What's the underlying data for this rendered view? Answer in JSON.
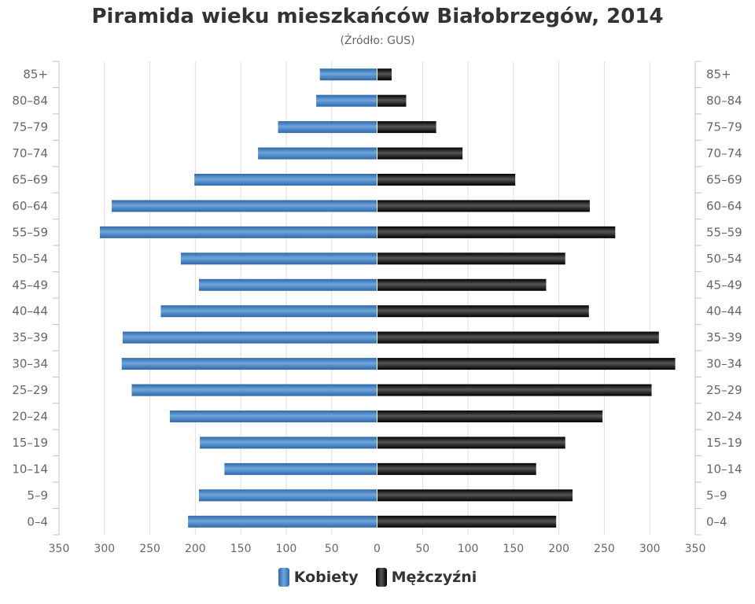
{
  "chart_data": {
    "type": "bar",
    "orientation": "horizontal-pyramid",
    "title": "Piramida wieku mieszkańców Białobrzegów, 2014",
    "subtitle": "(Źródło: GUS)",
    "categories": [
      "0–4",
      "5–9",
      "10–14",
      "15–19",
      "20–24",
      "25–29",
      "30–34",
      "35–39",
      "40–44",
      "45–49",
      "50–54",
      "55–59",
      "60–64",
      "65–69",
      "70–74",
      "75–79",
      "80–84",
      "85+"
    ],
    "series": [
      {
        "name": "Kobiety",
        "values": [
          208,
          196,
          168,
          195,
          228,
          270,
          281,
          280,
          238,
          196,
          216,
          305,
          292,
          201,
          131,
          109,
          67,
          63
        ]
      },
      {
        "name": "Mężczyźni",
        "values": [
          197,
          215,
          175,
          207,
          248,
          302,
          328,
          310,
          233,
          186,
          207,
          262,
          234,
          152,
          94,
          65,
          32,
          16
        ]
      }
    ],
    "xlim": [
      -350,
      350
    ],
    "xticks": [
      350,
      300,
      250,
      200,
      150,
      100,
      50,
      0,
      50,
      100,
      150,
      200,
      250,
      300,
      350
    ],
    "xlabel": "",
    "ylabel": "",
    "grid": true,
    "legend": "bottom-center",
    "colors": {
      "female": "#4a86c8",
      "male": "#1a1a1a"
    }
  }
}
